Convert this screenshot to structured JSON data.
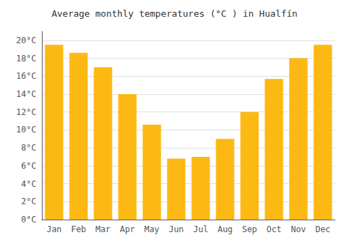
{
  "chart_data": {
    "type": "bar",
    "title": "Average monthly temperatures (°C ) in Hualfín",
    "categories": [
      "Jan",
      "Feb",
      "Mar",
      "Apr",
      "May",
      "Jun",
      "Jul",
      "Aug",
      "Sep",
      "Oct",
      "Nov",
      "Dec"
    ],
    "values": [
      19.5,
      18.6,
      17.0,
      14.0,
      10.6,
      6.8,
      7.0,
      9.0,
      12.0,
      15.7,
      18.0,
      19.5
    ],
    "color": "#FDB913",
    "ylim": [
      0,
      21
    ],
    "yticks": [
      {
        "value": 0,
        "label": "0°C"
      },
      {
        "value": 2,
        "label": "2°C"
      },
      {
        "value": 4,
        "label": "4°C"
      },
      {
        "value": 6,
        "label": "6°C"
      },
      {
        "value": 8,
        "label": "8°C"
      },
      {
        "value": 10,
        "label": "10°C"
      },
      {
        "value": 12,
        "label": "12°C"
      },
      {
        "value": 14,
        "label": "14°C"
      },
      {
        "value": 16,
        "label": "16°C"
      },
      {
        "value": 18,
        "label": "18°C"
      },
      {
        "value": 20,
        "label": "20°C"
      }
    ],
    "grid": true
  }
}
